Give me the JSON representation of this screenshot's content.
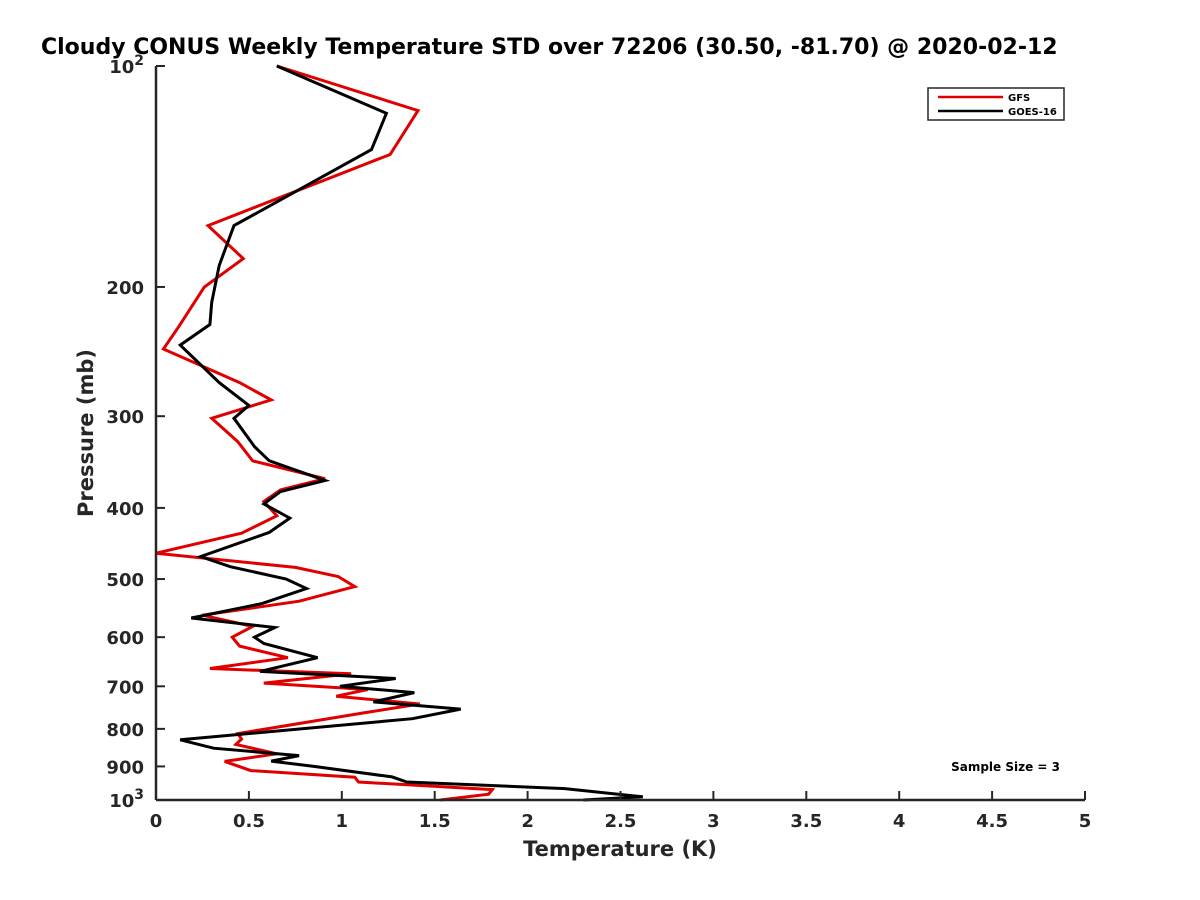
{
  "chart_data": {
    "type": "line",
    "title": "Cloudy CONUS Weekly Temperature STD over 72206 (30.50, -81.70) @ 2020-02-12",
    "xlabel": "Temperature (K)",
    "ylabel": "Pressure (mb)",
    "xlim": [
      0,
      5
    ],
    "ylim": [
      100,
      1000
    ],
    "y_scale": "log",
    "y_reversed": true,
    "grid": false,
    "legend_position": "top-right",
    "x_ticks": [
      {
        "value": 0,
        "label": "0"
      },
      {
        "value": 0.5,
        "label": "0.5"
      },
      {
        "value": 1,
        "label": "1"
      },
      {
        "value": 1.5,
        "label": "1.5"
      },
      {
        "value": 2,
        "label": "2"
      },
      {
        "value": 2.5,
        "label": "2.5"
      },
      {
        "value": 3,
        "label": "3"
      },
      {
        "value": 3.5,
        "label": "3.5"
      },
      {
        "value": 4,
        "label": "4"
      },
      {
        "value": 4.5,
        "label": "4.5"
      },
      {
        "value": 5,
        "label": "5"
      }
    ],
    "y_ticks": [
      {
        "value": 100,
        "base": "10",
        "exp": "2"
      },
      {
        "value": 200,
        "base": "200",
        "exp": ""
      },
      {
        "value": 300,
        "base": "300",
        "exp": ""
      },
      {
        "value": 400,
        "base": "400",
        "exp": ""
      },
      {
        "value": 500,
        "base": "500",
        "exp": ""
      },
      {
        "value": 600,
        "base": "600",
        "exp": ""
      },
      {
        "value": 700,
        "base": "700",
        "exp": ""
      },
      {
        "value": 800,
        "base": "800",
        "exp": ""
      },
      {
        "value": 900,
        "base": "900",
        "exp": ""
      },
      {
        "value": 1000,
        "base": "10",
        "exp": "3"
      }
    ],
    "annotation": "Sample Size = 3",
    "series": [
      {
        "name": "GFS",
        "color": "#e00000",
        "points": [
          [
            0.65,
            100
          ],
          [
            1.41,
            115
          ],
          [
            1.26,
            132
          ],
          [
            0.28,
            165
          ],
          [
            0.47,
            183
          ],
          [
            0.26,
            200
          ],
          [
            0.12,
            227
          ],
          [
            0.04,
            243
          ],
          [
            0.45,
            270
          ],
          [
            0.62,
            285
          ],
          [
            0.3,
            302
          ],
          [
            0.44,
            325
          ],
          [
            0.52,
            345
          ],
          [
            0.91,
            365
          ],
          [
            0.67,
            378
          ],
          [
            0.58,
            392
          ],
          [
            0.65,
            410
          ],
          [
            0.46,
            433
          ],
          [
            0.0,
            461
          ],
          [
            0.75,
            482
          ],
          [
            0.98,
            496
          ],
          [
            1.07,
            512
          ],
          [
            0.77,
            536
          ],
          [
            0.25,
            560
          ],
          [
            0.52,
            580
          ],
          [
            0.41,
            600
          ],
          [
            0.45,
            617
          ],
          [
            0.71,
            640
          ],
          [
            0.29,
            662
          ],
          [
            1.05,
            673
          ],
          [
            0.58,
            693
          ],
          [
            1.14,
            707
          ],
          [
            0.97,
            722
          ],
          [
            1.42,
            740
          ],
          [
            1.13,
            760
          ],
          [
            0.44,
            812
          ],
          [
            0.46,
            826
          ],
          [
            0.43,
            840
          ],
          [
            0.65,
            865
          ],
          [
            0.37,
            886
          ],
          [
            0.51,
            912
          ],
          [
            1.07,
            931
          ],
          [
            1.09,
            945
          ],
          [
            1.81,
            968
          ],
          [
            1.79,
            982
          ],
          [
            1.53,
            1000
          ]
        ]
      },
      {
        "name": "GOES-16",
        "color": "#000000",
        "points": [
          [
            0.65,
            100
          ],
          [
            1.24,
            116
          ],
          [
            1.16,
            130
          ],
          [
            0.42,
            165
          ],
          [
            0.34,
            187
          ],
          [
            0.3,
            210
          ],
          [
            0.29,
            225
          ],
          [
            0.13,
            240
          ],
          [
            0.34,
            270
          ],
          [
            0.5,
            290
          ],
          [
            0.42,
            302
          ],
          [
            0.53,
            330
          ],
          [
            0.61,
            345
          ],
          [
            0.91,
            367
          ],
          [
            0.67,
            380
          ],
          [
            0.58,
            395
          ],
          [
            0.72,
            413
          ],
          [
            0.61,
            432
          ],
          [
            0.24,
            466
          ],
          [
            0.4,
            481
          ],
          [
            0.7,
            500
          ],
          [
            0.81,
            515
          ],
          [
            0.57,
            540
          ],
          [
            0.19,
            565
          ],
          [
            0.64,
            582
          ],
          [
            0.53,
            600
          ],
          [
            0.58,
            612
          ],
          [
            0.87,
            640
          ],
          [
            0.56,
            668
          ],
          [
            1.29,
            683
          ],
          [
            0.99,
            700
          ],
          [
            1.39,
            714
          ],
          [
            1.17,
            735
          ],
          [
            1.64,
            752
          ],
          [
            1.38,
            775
          ],
          [
            0.13,
            828
          ],
          [
            0.31,
            850
          ],
          [
            0.77,
            870
          ],
          [
            0.62,
            885
          ],
          [
            0.85,
            900
          ],
          [
            1.27,
            930
          ],
          [
            1.35,
            945
          ],
          [
            2.2,
            965
          ],
          [
            2.62,
            990
          ],
          [
            2.3,
            1000
          ]
        ]
      }
    ]
  }
}
